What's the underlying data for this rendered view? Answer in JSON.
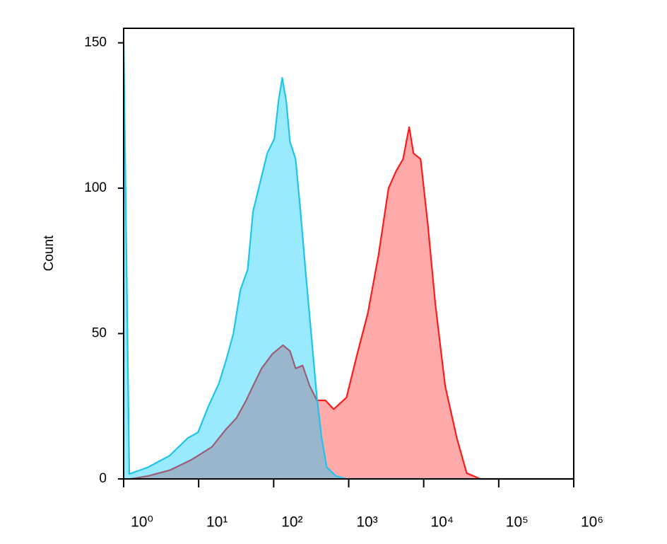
{
  "chart_data": {
    "type": "area",
    "y_label": "Count",
    "x_log": true,
    "xlim": [
      1,
      1000000
    ],
    "xticks": [
      {
        "value": 1,
        "label": "10⁰"
      },
      {
        "value": 10,
        "label": "10¹"
      },
      {
        "value": 100,
        "label": "10²"
      },
      {
        "value": 1000,
        "label": "10³"
      },
      {
        "value": 10000,
        "label": "10⁴"
      },
      {
        "value": 100000,
        "label": "10⁵"
      },
      {
        "value": 1000000,
        "label": "10⁶"
      }
    ],
    "ylim": [
      0,
      155
    ],
    "yticks": [
      0,
      50,
      100,
      150
    ],
    "series": [
      {
        "color": "#ff1a1a",
        "fill": "#ffaaaa",
        "fill_opacity": 1,
        "x": [
          1.24,
          2.1,
          4.1,
          7.9,
          15,
          23,
          32,
          43,
          53,
          69,
          96,
          133,
          165,
          196,
          243,
          302,
          377,
          490,
          630,
          935,
          1300,
          1800,
          2500,
          3400,
          4300,
          5300,
          6400,
          7300,
          9100,
          11400,
          14300,
          19300,
          27700,
          37400,
          57000,
          1000000
        ],
        "values": [
          0,
          1,
          3,
          6.5,
          11,
          17,
          21,
          27,
          32,
          38,
          43,
          46,
          44,
          38,
          39,
          32,
          27,
          27,
          24,
          28,
          43,
          57,
          77,
          100,
          106,
          110,
          121,
          112,
          110,
          87,
          60,
          32,
          14,
          2,
          0,
          0
        ]
      },
      {
        "color": "#1ec3ee",
        "fill": "#00c8ff",
        "fill_opacity": 0.4,
        "x": [
          1,
          1.19,
          2.1,
          4.1,
          7.1,
          9.8,
          13.5,
          18.7,
          23.3,
          29,
          36,
          45,
          53,
          66,
          82,
          102,
          116,
          130,
          147,
          165,
          196,
          228,
          265,
          316,
          377,
          437,
          510,
          676,
          935,
          1000000
        ],
        "values": [
          150,
          1.7,
          4,
          8,
          14,
          16,
          25,
          33,
          41,
          50,
          65,
          72,
          92,
          102,
          112,
          117,
          130,
          138,
          130,
          116,
          110,
          92,
          72,
          50,
          28,
          14,
          4,
          1,
          0,
          0
        ]
      }
    ]
  }
}
